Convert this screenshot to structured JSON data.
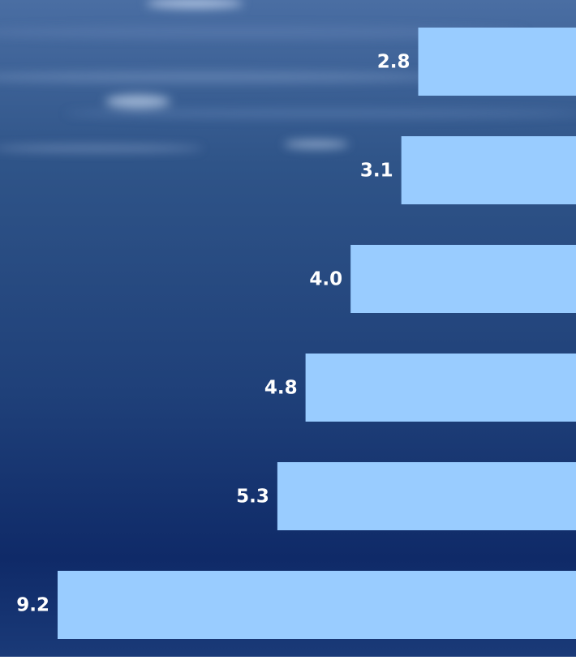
{
  "chart_data": {
    "type": "bar",
    "categories": [
      null,
      null,
      null,
      null,
      null,
      null
    ],
    "values": [
      2.8,
      3.1,
      4.0,
      4.8,
      5.3,
      9.2
    ],
    "value_labels": [
      "2.8",
      "3.1",
      "4.0",
      "4.8",
      "5.3",
      "9.2"
    ],
    "color": "#99ccff"
  }
}
